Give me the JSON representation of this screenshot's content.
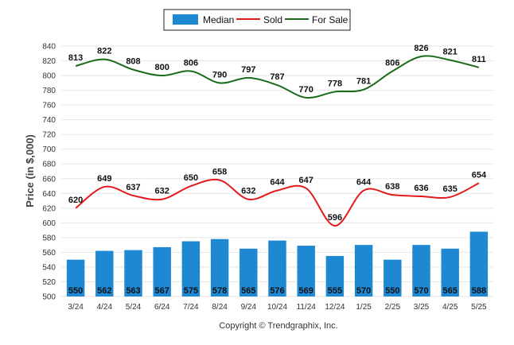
{
  "chart_data": {
    "type": "bar",
    "categories": [
      "3/24",
      "4/24",
      "5/24",
      "6/24",
      "7/24",
      "8/24",
      "9/24",
      "10/24",
      "11/24",
      "12/24",
      "1/25",
      "2/25",
      "3/25",
      "4/25",
      "5/25"
    ],
    "series": [
      {
        "name": "Median",
        "type": "bar",
        "color": "#1e88d3",
        "values": [
          550,
          562,
          563,
          567,
          575,
          578,
          565,
          576,
          569,
          555,
          570,
          550,
          570,
          565,
          588
        ]
      },
      {
        "name": "Sold",
        "type": "line",
        "color": "#e31a1c",
        "values": [
          620,
          649,
          637,
          632,
          650,
          658,
          632,
          644,
          647,
          596,
          644,
          638,
          636,
          635,
          654
        ]
      },
      {
        "name": "For Sale",
        "type": "line",
        "color": "#1a6b1a",
        "values": [
          813,
          822,
          808,
          800,
          806,
          790,
          797,
          787,
          770,
          778,
          781,
          806,
          826,
          821,
          811
        ]
      }
    ],
    "ylabel": "Price (in $,000)",
    "xlabel": "",
    "ylim": [
      500,
      840
    ],
    "yticks": [
      500,
      520,
      540,
      560,
      580,
      600,
      620,
      640,
      660,
      680,
      700,
      720,
      740,
      760,
      780,
      800,
      820,
      840
    ],
    "grid": true,
    "legend_position": "top-center"
  },
  "footer": {
    "copyright": "Copyright © Trendgraphix, Inc."
  }
}
